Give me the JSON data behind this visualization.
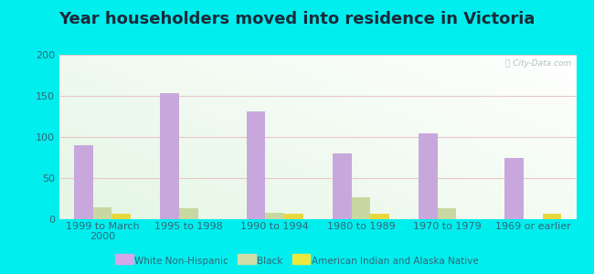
{
  "title": "Year householders moved into residence in Victoria",
  "categories": [
    "1999 to March\n2000",
    "1995 to 1998",
    "1990 to 1994",
    "1980 to 1989",
    "1970 to 1979",
    "1969 or earlier"
  ],
  "series": {
    "White Non-Hispanic": [
      90,
      153,
      131,
      80,
      105,
      74
    ],
    "Black": [
      15,
      13,
      8,
      27,
      13,
      0
    ],
    "American Indian and Alaska Native": [
      7,
      0,
      7,
      7,
      0,
      7
    ]
  },
  "colors": {
    "White Non-Hispanic": "#c8a8dc",
    "Black": "#c8d8a0",
    "American Indian and Alaska Native": "#e8d840"
  },
  "legend_colors": {
    "White Non-Hispanic": "#d4a8e8",
    "Black": "#d0dca8",
    "American Indian and Alaska Native": "#ece840"
  },
  "ylim": [
    0,
    200
  ],
  "yticks": [
    0,
    50,
    100,
    150,
    200
  ],
  "outer_background": "#00eeee",
  "bar_width": 0.22,
  "title_fontsize": 13,
  "tick_fontsize": 8,
  "label_color": "#336677"
}
